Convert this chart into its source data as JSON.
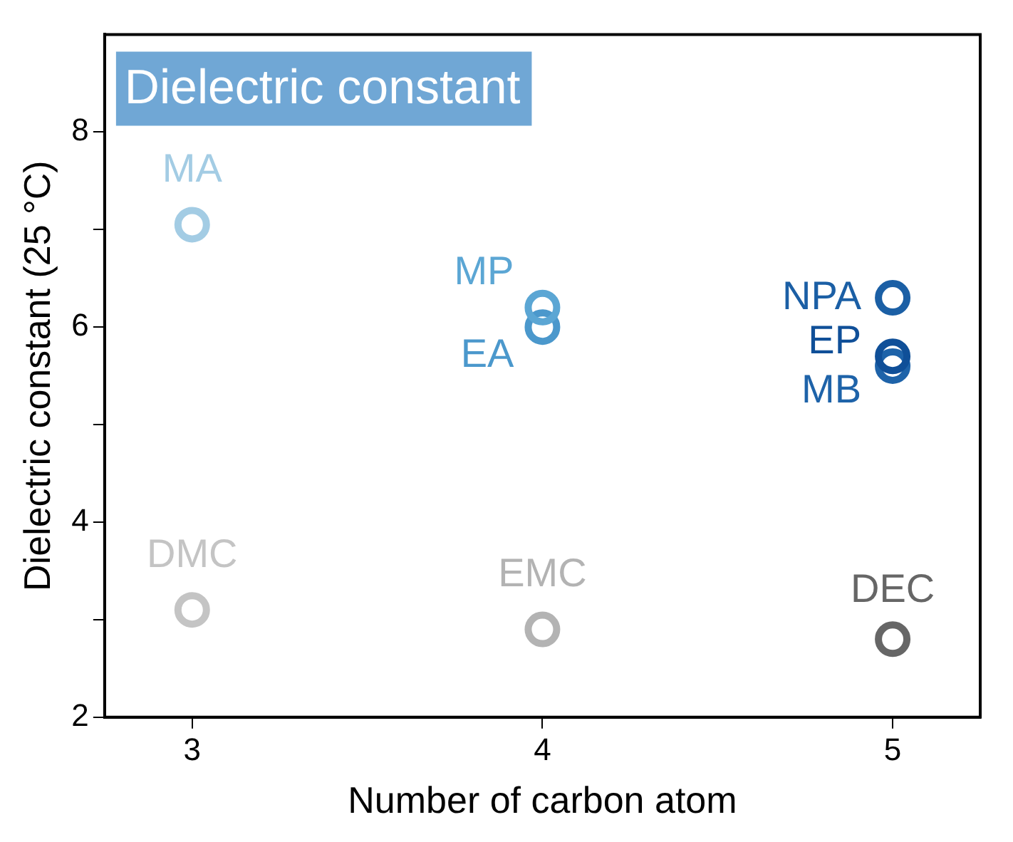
{
  "chart_data": {
    "type": "scatter",
    "title": "Dielectric constant",
    "xlabel": "Number of carbon atom",
    "ylabel": "Dielectric constant (25 °C)",
    "xlim": [
      2.75,
      5.25
    ],
    "xticks": [
      3,
      4,
      5
    ],
    "ylim": [
      2,
      9
    ],
    "yticks": [
      2,
      {
        "value": 3,
        "label": null
      },
      4,
      {
        "value": 5,
        "label": null
      },
      6,
      {
        "value": 7,
        "label": null
      },
      8
    ],
    "marker": "circle",
    "legend": false,
    "grid": false,
    "series": [
      {
        "name": "MA",
        "color": "#a3cce4",
        "x": [
          3
        ],
        "values": [
          7.05
        ]
      },
      {
        "name": "MP",
        "color": "#5ba6d4",
        "x": [
          4
        ],
        "values": [
          6.2
        ]
      },
      {
        "name": "EA",
        "color": "#4b98cc",
        "x": [
          4
        ],
        "values": [
          6.0
        ]
      },
      {
        "name": "NPA",
        "color": "#1b5fa5",
        "x": [
          5
        ],
        "values": [
          6.3
        ]
      },
      {
        "name": "EP",
        "color": "#0f4f98",
        "x": [
          5
        ],
        "values": [
          5.7
        ]
      },
      {
        "name": "MB",
        "color": "#1e63a9",
        "x": [
          5
        ],
        "values": [
          5.6
        ]
      },
      {
        "name": "DMC",
        "color": "#c4c4c4",
        "x": [
          3
        ],
        "values": [
          3.1
        ]
      },
      {
        "name": "EMC",
        "color": "#b3b3b3",
        "x": [
          4
        ],
        "values": [
          2.9
        ]
      },
      {
        "name": "DEC",
        "color": "#666666",
        "x": [
          5
        ],
        "values": [
          2.8
        ]
      }
    ]
  }
}
